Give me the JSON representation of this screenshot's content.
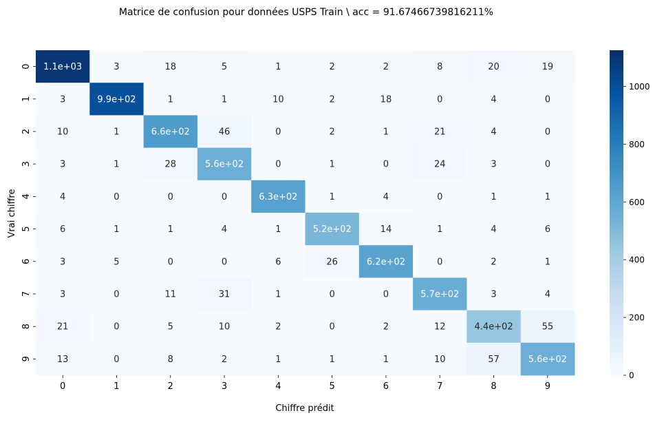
{
  "chart_data": {
    "type": "heatmap",
    "title": "Matrice de confusion pour données USPS Train \\ acc = 91.67466739816211%",
    "xlabel": "Chiffre prédit",
    "ylabel": "Vrai chiffre",
    "x_categories": [
      "0",
      "1",
      "2",
      "3",
      "4",
      "5",
      "6",
      "7",
      "8",
      "9"
    ],
    "y_categories": [
      "0",
      "1",
      "2",
      "3",
      "4",
      "5",
      "6",
      "7",
      "8",
      "9"
    ],
    "values": [
      [
        1100,
        3,
        18,
        5,
        1,
        2,
        2,
        8,
        20,
        19
      ],
      [
        3,
        990,
        1,
        1,
        10,
        2,
        18,
        0,
        4,
        0
      ],
      [
        10,
        1,
        660,
        46,
        0,
        2,
        1,
        21,
        4,
        0
      ],
      [
        3,
        1,
        28,
        560,
        0,
        1,
        0,
        24,
        3,
        0
      ],
      [
        4,
        0,
        0,
        0,
        630,
        1,
        4,
        0,
        1,
        1
      ],
      [
        6,
        1,
        1,
        4,
        1,
        520,
        14,
        1,
        4,
        6
      ],
      [
        3,
        5,
        0,
        0,
        6,
        26,
        620,
        0,
        2,
        1
      ],
      [
        3,
        0,
        11,
        31,
        1,
        0,
        0,
        570,
        3,
        4
      ],
      [
        21,
        0,
        5,
        10,
        2,
        0,
        2,
        12,
        440,
        55
      ],
      [
        13,
        0,
        8,
        2,
        1,
        1,
        1,
        10,
        57,
        560
      ]
    ],
    "annotations": [
      [
        "1.1e+03",
        "3",
        "18",
        "5",
        "1",
        "2",
        "2",
        "8",
        "20",
        "19"
      ],
      [
        "3",
        "9.9e+02",
        "1",
        "1",
        "10",
        "2",
        "18",
        "0",
        "4",
        "0"
      ],
      [
        "10",
        "1",
        "6.6e+02",
        "46",
        "0",
        "2",
        "1",
        "21",
        "4",
        "0"
      ],
      [
        "3",
        "1",
        "28",
        "5.6e+02",
        "0",
        "1",
        "0",
        "24",
        "3",
        "0"
      ],
      [
        "4",
        "0",
        "0",
        "0",
        "6.3e+02",
        "1",
        "4",
        "0",
        "1",
        "1"
      ],
      [
        "6",
        "1",
        "1",
        "4",
        "1",
        "5.2e+02",
        "14",
        "1",
        "4",
        "6"
      ],
      [
        "3",
        "5",
        "0",
        "0",
        "6",
        "26",
        "6.2e+02",
        "0",
        "2",
        "1"
      ],
      [
        "3",
        "0",
        "11",
        "31",
        "1",
        "0",
        "0",
        "5.7e+02",
        "3",
        "4"
      ],
      [
        "21",
        "0",
        "5",
        "10",
        "2",
        "0",
        "2",
        "12",
        "4.4e+02",
        "55"
      ],
      [
        "13",
        "0",
        "8",
        "2",
        "1",
        "1",
        "1",
        "10",
        "57",
        "5.6e+02"
      ]
    ],
    "colorbar": {
      "min": 0,
      "max": 1125,
      "ticks": [
        0,
        200,
        400,
        600,
        800,
        1000
      ]
    },
    "colormap": "Blues",
    "colors": {
      "low": "#f7fbff",
      "high": "#08306b"
    }
  }
}
